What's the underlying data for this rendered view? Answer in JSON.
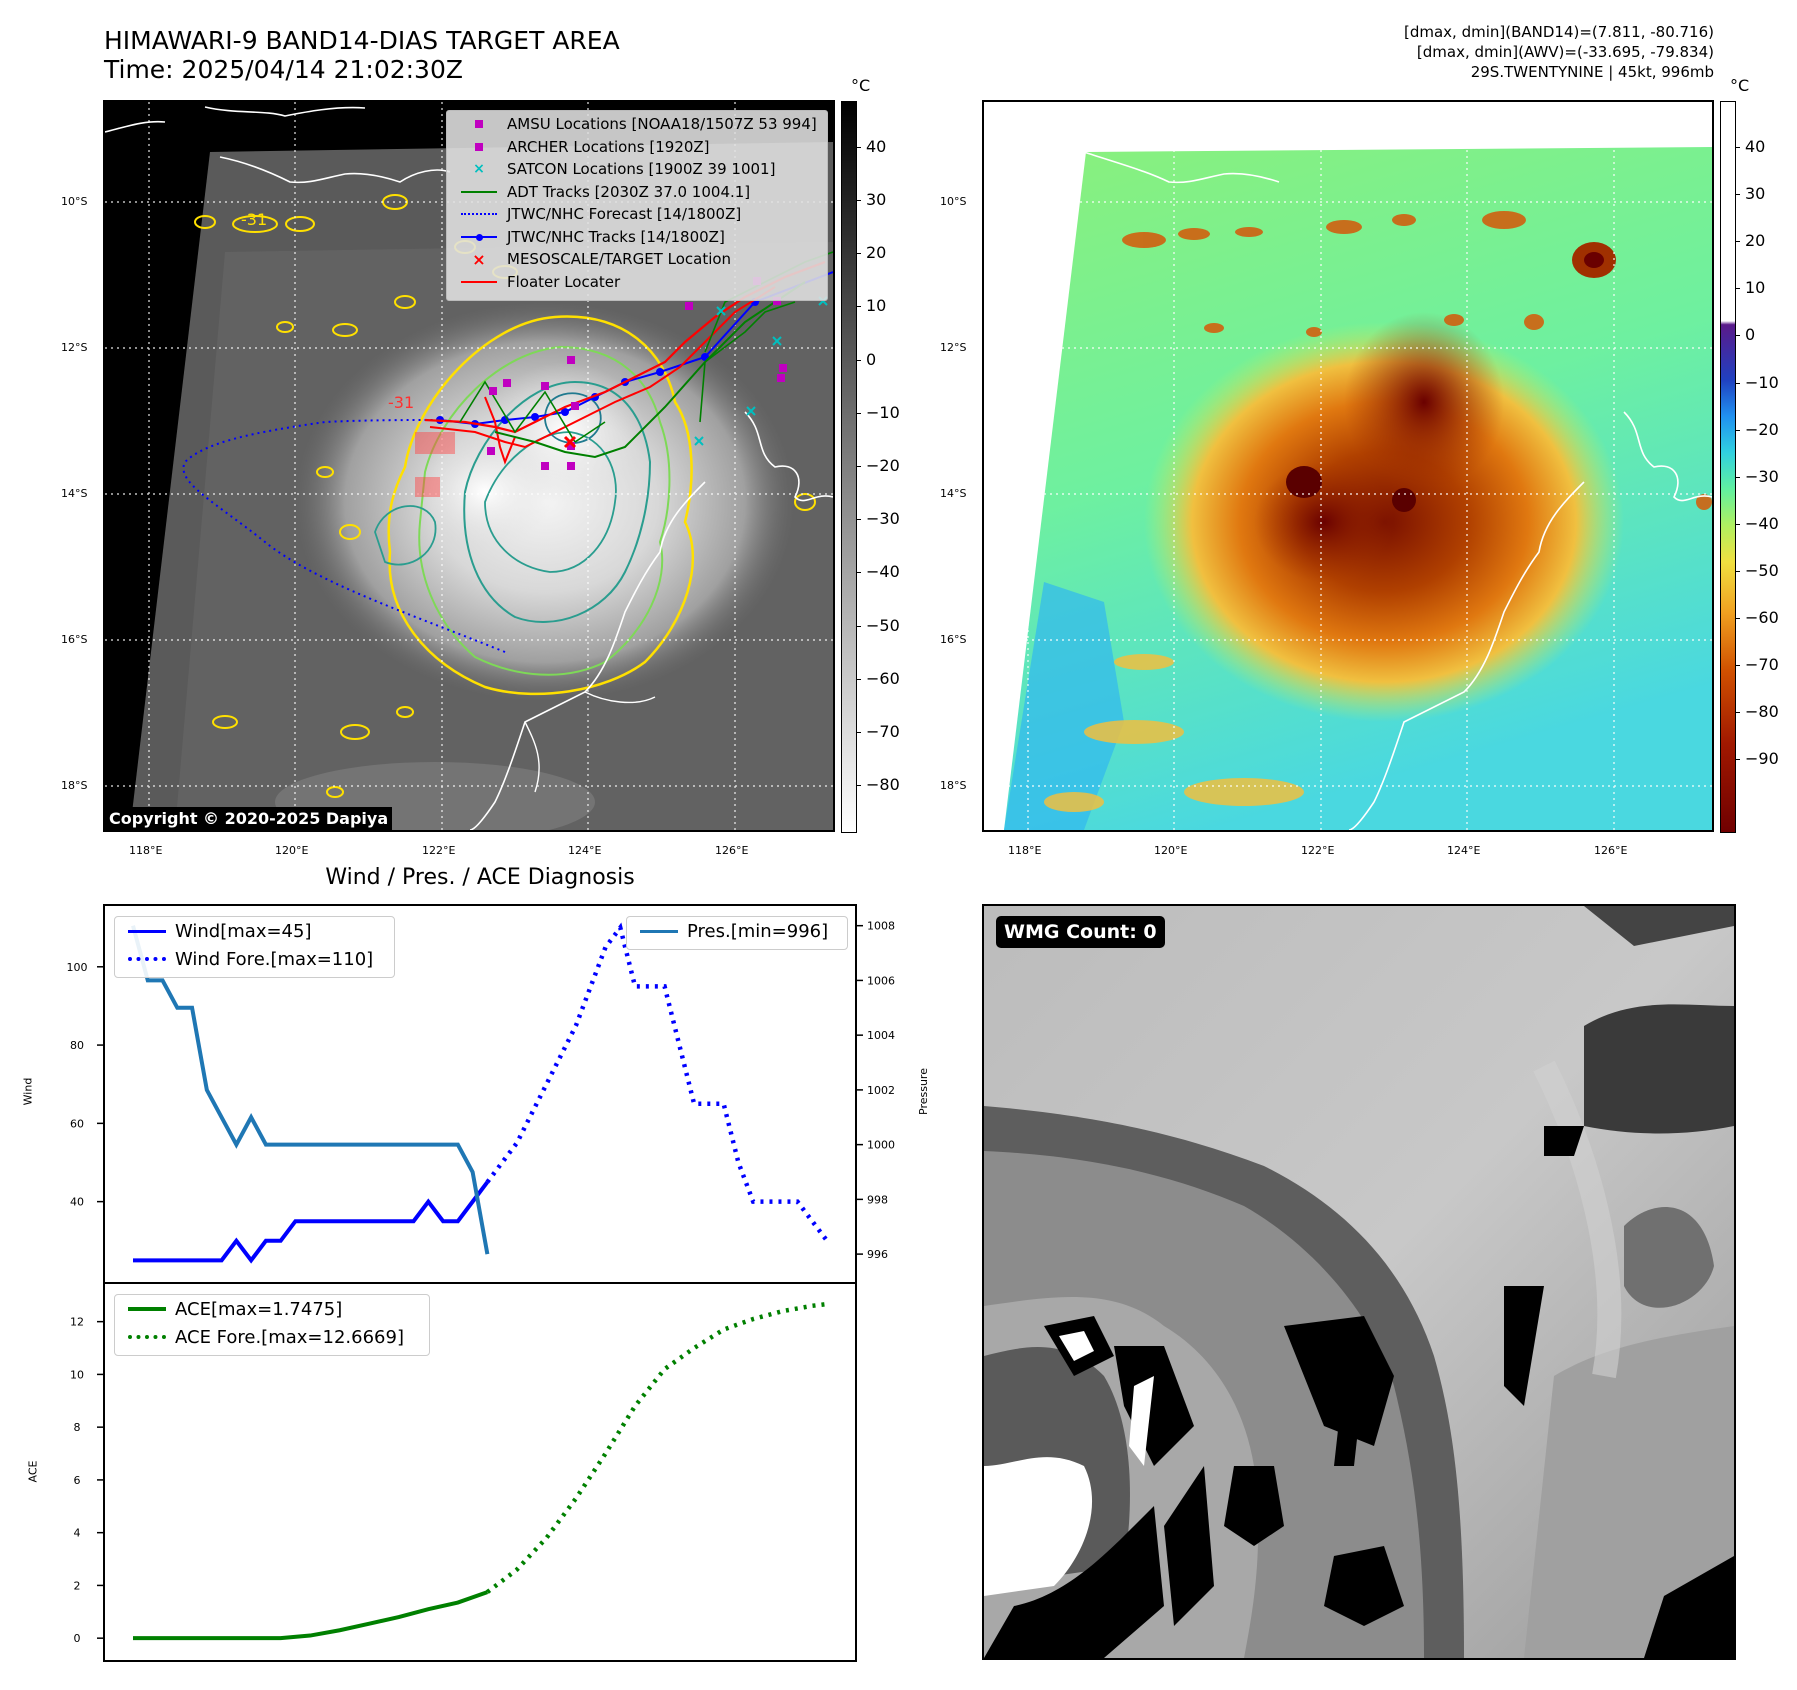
{
  "header": {
    "title_line1": "HIMAWARI-9 BAND14-DIAS TARGET AREA",
    "title_line2": "Time: 2025/04/14 21:02:30Z",
    "info_line1": "[dmax, dmin](BAND14)=(7.811, -80.716)",
    "info_line2": "[dmax, dmin](AWV)=(-33.695, -79.834)",
    "info_line3": "29S.TWENTYNINE | 45kt, 996mb"
  },
  "map_axes": {
    "lon_labels": [
      "118°E",
      "120°E",
      "122°E",
      "124°E",
      "126°E"
    ],
    "lat_labels": [
      "10°S",
      "12°S",
      "14°S",
      "16°S",
      "18°S"
    ]
  },
  "ir_panel": {
    "colorbar_unit": "°C",
    "colorbar_ticks": [
      "40",
      "30",
      "20",
      "10",
      "0",
      "−10",
      "−20",
      "−30",
      "−40",
      "−50",
      "−60",
      "−70",
      "−80"
    ],
    "contour_label_a": "-31",
    "contour_label_b": "-31",
    "copyright": "Copyright © 2020-2025 Dapiya",
    "legend": [
      {
        "label": "AMSU Locations [NOAA18/1507Z 53 994]",
        "icon": "square-marker",
        "color": "#c000c0"
      },
      {
        "label": "ARCHER Locations [1920Z]",
        "icon": "square-marker",
        "color": "#c000c0"
      },
      {
        "label": "SATCON Locations [1900Z 39 1001]",
        "icon": "x-marker",
        "color": "#00bfbf"
      },
      {
        "label": "ADT Tracks [2030Z 37.0 1004.1]",
        "icon": "solid-line",
        "color": "#008000"
      },
      {
        "label": "JTWC/NHC Forecast [14/1800Z]",
        "icon": "dotted-line",
        "color": "#0000ff"
      },
      {
        "label": "JTWC/NHC Tracks [14/1800Z]",
        "icon": "line-dot",
        "color": "#0000ff"
      },
      {
        "label": "MESOSCALE/TARGET Location",
        "icon": "x-marker",
        "color": "#ff0000"
      },
      {
        "label": "Floater Locater",
        "icon": "solid-line",
        "color": "#ff0000"
      }
    ]
  },
  "awv_panel": {
    "colorbar_unit": "°C",
    "colorbar_ticks": [
      "40",
      "30",
      "20",
      "10",
      "0",
      "−10",
      "−20",
      "−30",
      "−40",
      "−50",
      "−60",
      "−70",
      "−80",
      "−90"
    ]
  },
  "microwave_panel": {
    "wmg_count": "WMG Count: 0"
  },
  "chart_data": [
    {
      "type": "line",
      "title": "Wind / Pres. / ACE Diagnosis",
      "xlabel": "",
      "ylabel": "Wind",
      "ylabel_right": "Pressure",
      "yticks": [
        "40",
        "60",
        "80",
        "100"
      ],
      "yticks_right": [
        "996",
        "998",
        "1000",
        "1002",
        "1004",
        "1006",
        "1008"
      ],
      "ylim": [
        21,
        114
      ],
      "ylim_right": [
        995.2,
        1008.5
      ],
      "x": [
        0,
        1,
        2,
        3,
        4,
        5,
        6,
        7,
        8,
        9,
        10,
        11,
        12,
        13,
        14,
        15,
        16,
        17,
        18,
        19,
        20,
        21,
        22,
        23,
        24,
        25,
        26,
        27,
        28,
        29,
        30,
        31,
        32,
        33,
        34,
        35,
        36,
        37,
        38,
        39,
        40,
        41,
        42,
        43,
        44,
        45,
        46,
        47
      ],
      "series": [
        {
          "name": "Wind[max=45]",
          "axis": "left",
          "color": "#0000ff",
          "style": "solid",
          "x": [
            0,
            1,
            2,
            3,
            4,
            5,
            6,
            7,
            8,
            9,
            10,
            11,
            12,
            13,
            14,
            15,
            16,
            17,
            18,
            19,
            20,
            21,
            22,
            23,
            24
          ],
          "values": [
            25,
            25,
            25,
            25,
            25,
            25,
            25,
            30,
            25,
            30,
            30,
            35,
            35,
            35,
            35,
            35,
            35,
            35,
            35,
            35,
            40,
            35,
            35,
            40,
            45
          ]
        },
        {
          "name": "Wind Fore.[max=110]",
          "axis": "left",
          "color": "#0000ff",
          "style": "dotted",
          "x": [
            24,
            26,
            28,
            30,
            31,
            32,
            33,
            34,
            35,
            36,
            37,
            38,
            39,
            40,
            41,
            42,
            43,
            44,
            45,
            46,
            47
          ],
          "values": [
            45,
            55,
            70,
            85,
            95,
            105,
            110,
            95,
            95,
            95,
            80,
            65,
            65,
            65,
            50,
            40,
            40,
            40,
            40,
            35,
            30
          ]
        },
        {
          "name": "Pres.[min=996]",
          "axis": "right",
          "color": "#1f77b4",
          "style": "solid",
          "x": [
            0,
            1,
            2,
            3,
            4,
            5,
            6,
            7,
            8,
            9,
            10,
            11,
            12,
            13,
            14,
            15,
            16,
            17,
            18,
            19,
            20,
            21,
            22,
            23,
            24
          ],
          "values": [
            1008,
            1006,
            1006,
            1005,
            1005,
            1002,
            1001,
            1000,
            1001,
            1000,
            1000,
            1000,
            1000,
            1000,
            1000,
            1000,
            1000,
            1000,
            1000,
            1000,
            1000,
            1000,
            1000,
            999,
            996
          ]
        }
      ]
    },
    {
      "type": "line",
      "title": "",
      "xlabel": "",
      "ylabel": "ACE",
      "yticks": [
        "0",
        "2",
        "4",
        "6",
        "8",
        "10",
        "12"
      ],
      "ylim": [
        -0.6,
        13.2
      ],
      "series": [
        {
          "name": "ACE[max=1.7475]",
          "color": "#008000",
          "style": "solid",
          "x": [
            0,
            2,
            4,
            6,
            8,
            10,
            12,
            14,
            16,
            18,
            20,
            22,
            24
          ],
          "values": [
            0,
            0,
            0,
            0,
            0,
            0,
            0.1,
            0.3,
            0.55,
            0.8,
            1.1,
            1.35,
            1.7475
          ]
        },
        {
          "name": "ACE Fore.[max=12.6669]",
          "color": "#008000",
          "style": "dotted",
          "x": [
            24,
            26,
            28,
            30,
            32,
            34,
            36,
            38,
            40,
            42,
            44,
            46,
            47
          ],
          "values": [
            1.7475,
            2.6,
            3.8,
            5.3,
            7.0,
            8.8,
            10.2,
            11.0,
            11.7,
            12.1,
            12.4,
            12.6,
            12.6669
          ]
        }
      ]
    }
  ]
}
